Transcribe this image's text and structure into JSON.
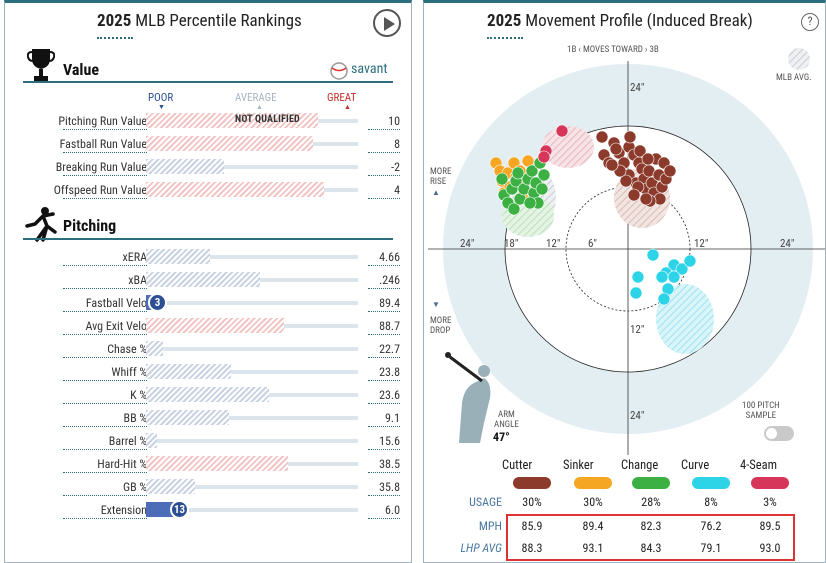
{
  "left": {
    "title_year": "2025",
    "title_text": "MLB Percentile Rankings",
    "value_section": "Value",
    "savant_label": "savant",
    "legend": {
      "poor": "POOR",
      "average": "AVERAGE",
      "great": "GREAT"
    },
    "not_qualified": "NOT QUALIFIED",
    "value_rows": [
      {
        "label": "Pitching Run Value",
        "value": "10",
        "percentile": 81,
        "style": "hatch-r"
      },
      {
        "label": "Fastball Run Value",
        "value": "8",
        "percentile": 79,
        "style": "hatch-r"
      },
      {
        "label": "Breaking Run Value",
        "value": "-2",
        "percentile": 37,
        "style": "hatch-b"
      },
      {
        "label": "Offspeed Run Value",
        "value": "4",
        "percentile": 84,
        "style": "hatch-r"
      }
    ],
    "pitching_section": "Pitching",
    "pitching_rows": [
      {
        "label": "xERA",
        "value": "4.66",
        "percentile": 30,
        "style": "hatch-b"
      },
      {
        "label": "xBA",
        "value": ".246",
        "percentile": 54,
        "style": "hatch-b"
      },
      {
        "label": "Fastball Velo",
        "value": "89.4",
        "percentile": 3,
        "style": "solid-b",
        "badge": "3"
      },
      {
        "label": "Avg Exit Velo",
        "value": "88.7",
        "percentile": 65,
        "style": "hatch-r"
      },
      {
        "label": "Chase %",
        "value": "22.7",
        "percentile": 8,
        "style": "hatch-b"
      },
      {
        "label": "Whiff %",
        "value": "23.8",
        "percentile": 40,
        "style": "hatch-b"
      },
      {
        "label": "K %",
        "value": "23.6",
        "percentile": 58,
        "style": "hatch-b"
      },
      {
        "label": "BB %",
        "value": "9.1",
        "percentile": 39,
        "style": "hatch-b"
      },
      {
        "label": "Barrel %",
        "value": "15.6",
        "percentile": 5,
        "style": "hatch-b"
      },
      {
        "label": "Hard-Hit %",
        "value": "38.5",
        "percentile": 67,
        "style": "hatch-r"
      },
      {
        "label": "GB %",
        "value": "35.8",
        "percentile": 23,
        "style": "hatch-b"
      },
      {
        "label": "Extension",
        "value": "6.0",
        "percentile": 13,
        "style": "solid-b",
        "badge": "13"
      }
    ]
  },
  "right": {
    "title_year": "2025",
    "title_text": "Movement Profile (Induced Break)",
    "help": "?",
    "direction_label": "1B ‹ MOVES TOWARD › 3B",
    "mlb_avg": "MLB AVG.",
    "more_rise": "MORE\nRISE",
    "more_drop": "MORE\nDROP",
    "ring_labels": {
      "top24": "24\"",
      "left24": "24\"",
      "left18": "18\"",
      "left12": "12\"",
      "left6": "6\"",
      "right12": "12\"",
      "right24": "24\"",
      "bottom12": "12\"",
      "bottom24": "24\""
    },
    "arm_angle_label": "ARM\nANGLE",
    "arm_angle_value": "47°",
    "sample_label": "100 PITCH\nSAMPLE",
    "colors": {
      "cutter": "#8b3a2b",
      "sinker": "#f5a623",
      "change": "#3cb043",
      "curve": "#2dd4e8",
      "fourseam": "#d6365a"
    },
    "pitches": [
      {
        "name": "Cutter",
        "usage": "30%",
        "mph": "85.9",
        "lhp": "88.3"
      },
      {
        "name": "Sinker",
        "usage": "30%",
        "mph": "89.4",
        "lhp": "93.1"
      },
      {
        "name": "Change",
        "usage": "28%",
        "mph": "82.3",
        "lhp": "84.3"
      },
      {
        "name": "Curve",
        "usage": "8%",
        "mph": "76.2",
        "lhp": "79.1"
      },
      {
        "name": "4-Seam",
        "usage": "3%",
        "mph": "89.5",
        "lhp": "93.0"
      }
    ],
    "row_labels": {
      "usage": "USAGE",
      "mph": "MPH",
      "lhp": "LHP AVG"
    }
  }
}
